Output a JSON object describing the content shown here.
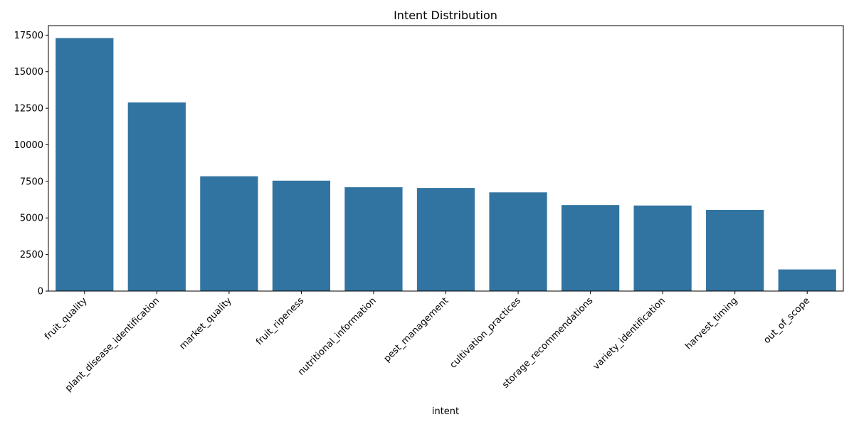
{
  "chart_data": {
    "type": "bar",
    "title": "Intent Distribution",
    "xlabel": "intent",
    "ylabel": "",
    "categories": [
      "fruit_quality",
      "plant_disease_identification",
      "market_quality",
      "fruit_ripeness",
      "nutritional_information",
      "pest_management",
      "cultivation_practices",
      "storage_recommendations",
      "variety_identification",
      "harvest_timing",
      "out_of_scope"
    ],
    "values": [
      17300,
      12900,
      7850,
      7550,
      7100,
      7050,
      6750,
      5880,
      5850,
      5550,
      1480
    ],
    "ylim": [
      0,
      18150
    ],
    "yticks": [
      0,
      2500,
      5000,
      7500,
      10000,
      12500,
      15000,
      17500
    ],
    "bar_color": "#3274a1",
    "grid": false,
    "legend": false
  }
}
